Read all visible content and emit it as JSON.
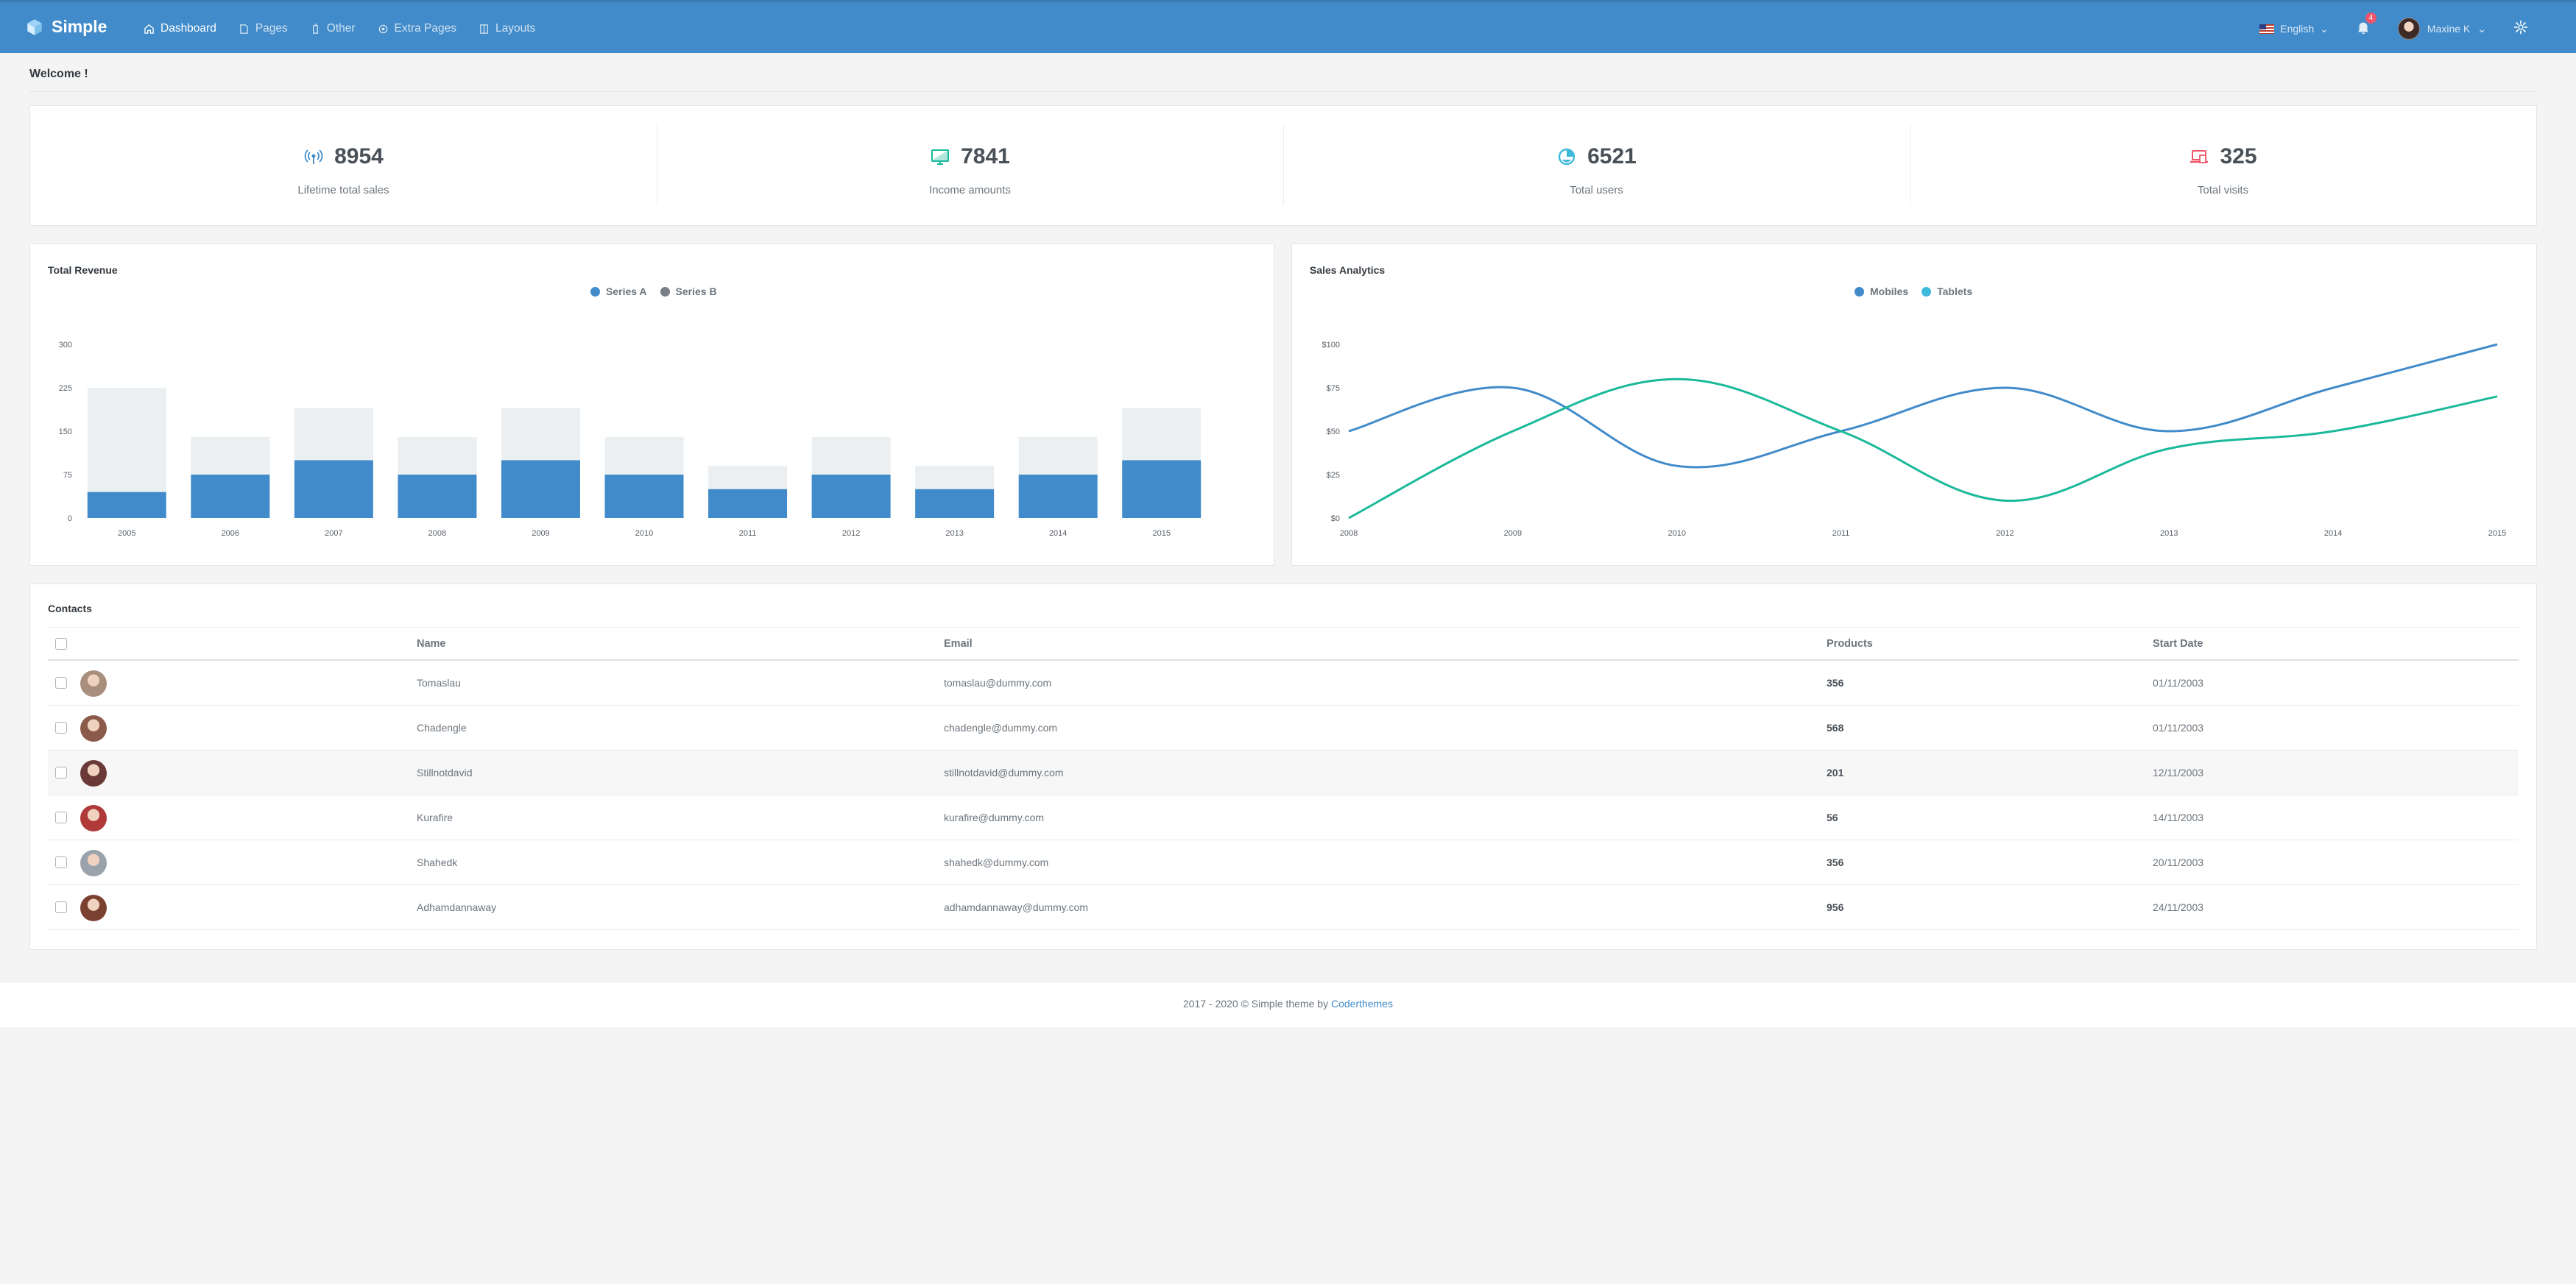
{
  "brand": {
    "name": "Simple"
  },
  "nav": [
    {
      "label": "Dashboard",
      "icon": "home-icon"
    },
    {
      "label": "Pages",
      "icon": "pages-icon"
    },
    {
      "label": "Other",
      "icon": "other-icon"
    },
    {
      "label": "Extra Pages",
      "icon": "extra-icon"
    },
    {
      "label": "Layouts",
      "icon": "layouts-icon"
    }
  ],
  "topbar": {
    "language": "English",
    "notifications": "4",
    "user": "Maxine K"
  },
  "page": {
    "title": "Welcome !"
  },
  "stats": [
    {
      "value": "8954",
      "label": "Lifetime total sales",
      "icon": "broadcast-icon",
      "color": "#428bca"
    },
    {
      "value": "7841",
      "label": "Income amounts",
      "icon": "monitor-icon",
      "color": "#1bb99a"
    },
    {
      "value": "6521",
      "label": "Total users",
      "icon": "pie-icon",
      "color": "#3db9dc"
    },
    {
      "value": "325",
      "label": "Total visits",
      "icon": "laptop-icon",
      "color": "#f1556c"
    }
  ],
  "chart_data": [
    {
      "type": "bar",
      "title": "Total Revenue",
      "categories": [
        "2005",
        "2006",
        "2007",
        "2008",
        "2009",
        "2010",
        "2011",
        "2012",
        "2013",
        "2014",
        "2015"
      ],
      "series": [
        {
          "name": "Series A",
          "values": [
            45,
            75,
            100,
            75,
            100,
            75,
            50,
            75,
            50,
            75,
            100
          ],
          "color": "#428bca"
        },
        {
          "name": "Series B",
          "values": [
            180,
            65,
            90,
            65,
            90,
            65,
            40,
            65,
            40,
            65,
            90
          ],
          "color": "#ebeff2"
        }
      ],
      "stacked": true,
      "yticks": [
        "0",
        "75",
        "150",
        "225",
        "300"
      ],
      "ylim": [
        0,
        300
      ]
    },
    {
      "type": "line",
      "title": "Sales Analytics",
      "x": [
        "2008",
        "2009",
        "2010",
        "2011",
        "2012",
        "2013",
        "2014",
        "2015"
      ],
      "series": [
        {
          "name": "Mobiles",
          "values": [
            50,
            75,
            30,
            50,
            75,
            50,
            75,
            100
          ],
          "color": "#428bca"
        },
        {
          "name": "Tablets",
          "values": [
            0,
            50,
            80,
            50,
            10,
            40,
            50,
            70
          ],
          "color": "#1bb99a"
        }
      ],
      "yticks": [
        "$0",
        "$25",
        "$50",
        "$75",
        "$100"
      ],
      "ylim": [
        0,
        100
      ]
    }
  ],
  "contacts": {
    "title": "Contacts",
    "headers": {
      "name": "Name",
      "email": "Email",
      "products": "Products",
      "start": "Start Date"
    },
    "rows": [
      {
        "name": "Tomaslau",
        "email": "tomaslau@dummy.com",
        "products": "356",
        "start": "01/11/2003",
        "avatar_color": "#a88e7c"
      },
      {
        "name": "Chadengle",
        "email": "chadengle@dummy.com",
        "products": "568",
        "start": "01/11/2003",
        "avatar_color": "#8a5a4a"
      },
      {
        "name": "Stillnotdavid",
        "email": "stillnotdavid@dummy.com",
        "products": "201",
        "start": "12/11/2003",
        "avatar_color": "#6a3a38"
      },
      {
        "name": "Kurafire",
        "email": "kurafire@dummy.com",
        "products": "56",
        "start": "14/11/2003",
        "avatar_color": "#b03a3a"
      },
      {
        "name": "Shahedk",
        "email": "shahedk@dummy.com",
        "products": "356",
        "start": "20/11/2003",
        "avatar_color": "#9aa3ab"
      },
      {
        "name": "Adhamdannaway",
        "email": "adhamdannaway@dummy.com",
        "products": "956",
        "start": "24/11/2003",
        "avatar_color": "#7a4030"
      }
    ]
  },
  "footer": {
    "text": "2017 - 2020 © Simple theme by ",
    "link": "Coderthemes"
  }
}
